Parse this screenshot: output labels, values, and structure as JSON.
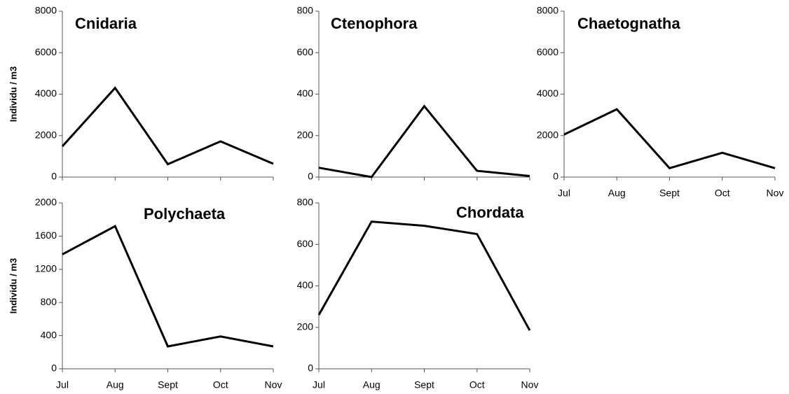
{
  "chart_data": [
    {
      "type": "line",
      "title": "Cnidaria",
      "ylabel": "Individu / m3",
      "categories": [
        null,
        null,
        null,
        null,
        null
      ],
      "values": [
        1480,
        4300,
        620,
        1720,
        640
      ],
      "color": "#000000",
      "ylim": [
        0,
        8000
      ],
      "yticks": [
        0,
        2000,
        4000,
        6000,
        8000
      ]
    },
    {
      "type": "line",
      "title": "Ctenophora",
      "categories": [
        null,
        null,
        null,
        null,
        null
      ],
      "values": [
        45,
        0,
        342,
        30,
        5
      ],
      "color": "#000000",
      "ylim": [
        0,
        800
      ],
      "yticks": [
        0,
        200,
        400,
        600,
        800
      ]
    },
    {
      "type": "line",
      "title": "Chaetognatha",
      "categories": [
        "Jul",
        "Aug",
        "Sept",
        "Oct",
        "Nov"
      ],
      "values": [
        2050,
        3270,
        430,
        1170,
        430
      ],
      "color": "#000000",
      "ylim": [
        0,
        8000
      ],
      "yticks": [
        0,
        2000,
        4000,
        6000,
        8000
      ]
    },
    {
      "type": "line",
      "title": "Polychaeta",
      "ylabel": "Individu / m3",
      "categories": [
        "Jul",
        "Aug",
        "Sept",
        "Oct",
        "Nov"
      ],
      "values": [
        1380,
        1720,
        270,
        390,
        270
      ],
      "color": "#000000",
      "ylim": [
        0,
        2000
      ],
      "yticks": [
        0,
        400,
        800,
        1200,
        1600,
        2000
      ]
    },
    {
      "type": "line",
      "title": "Chordata",
      "categories": [
        "Jul",
        "Aug",
        "Sept",
        "Oct",
        "Nov"
      ],
      "values": [
        260,
        710,
        690,
        650,
        185
      ],
      "color": "#000000",
      "ylim": [
        0,
        800
      ],
      "yticks": [
        0,
        200,
        400,
        600,
        800
      ]
    }
  ]
}
